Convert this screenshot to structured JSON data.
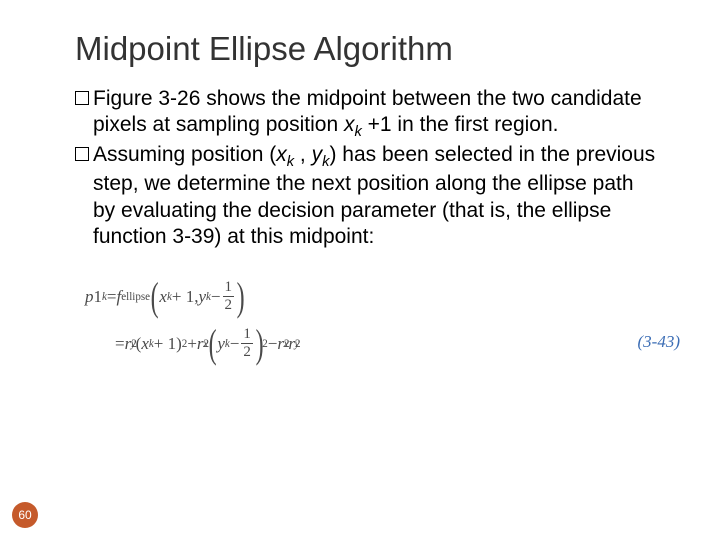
{
  "title": "Midpoint Ellipse Algorithm",
  "bullets": [
    {
      "pre": "Figure 3-26 shows the midpoint between the two candidate pixels at sampling position ",
      "var1": "x",
      "sub1": "k",
      "post": " +1 in the first region."
    },
    {
      "pre": "Assuming position (",
      "var1": "x",
      "sub1": "k",
      "mid1": " , ",
      "var2": "y",
      "sub2": "k",
      "mid2": ") has been selected in the previous step, we determine the next position along the ellipse path by evaluating the decision parameter (that is, the ellipse function 3-39) at this midpoint:"
    }
  ],
  "equation": {
    "lhs_var": "p",
    "lhs_num": "1",
    "lhs_sub": "k",
    "eq": " = ",
    "func": "f",
    "func_sub": "ellipse",
    "arg_x_var": "x",
    "arg_x_sub": "k",
    "arg_x_plus": " + 1, ",
    "arg_y_var": "y",
    "arg_y_sub": "k",
    "arg_minus": " − ",
    "frac_num": "1",
    "frac_den": "2",
    "line2_eq": "= ",
    "ry_var": "r",
    "ry_sub": "y",
    "sq": "2",
    "open": "(",
    "close": ")",
    "plus": " + ",
    "rx_var": "r",
    "rx_sub": "x",
    "minus2": " − ",
    "number": "(3-43)"
  },
  "page_number": "60",
  "colors": {
    "title": "#333333",
    "body": "#000000",
    "eq": "#4a4a4a",
    "eq_number": "#3b6db5",
    "badge_bg": "#c55a2b",
    "badge_fg": "#ffffff"
  }
}
